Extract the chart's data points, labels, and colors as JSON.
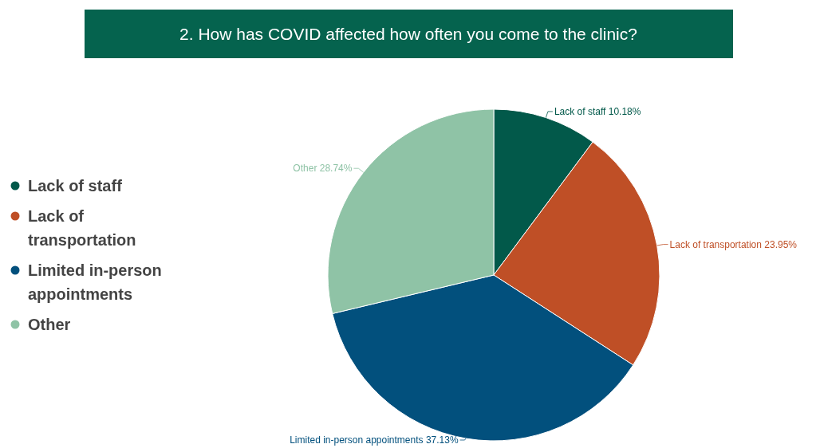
{
  "chart_data": {
    "type": "pie",
    "title": "2. How has COVID affected how often you come to the clinic?",
    "categories": [
      "Lack of staff",
      "Lack of transportation",
      "Limited in-person appointments",
      "Other"
    ],
    "values": [
      10.18,
      23.95,
      37.13,
      28.74
    ],
    "colors": [
      "#02594a",
      "#bf4f26",
      "#02507d",
      "#8fc3a6"
    ],
    "value_labels": [
      "10.18%",
      "23.95%",
      "37.13%",
      "28.74%"
    ],
    "legend": "left"
  }
}
